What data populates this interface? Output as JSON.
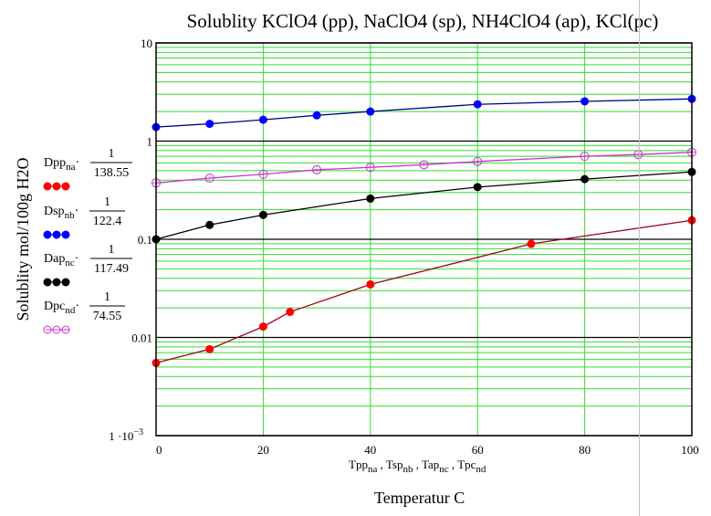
{
  "chart_data": {
    "type": "line",
    "title": "Solublity KClO4 (pp), NaClO4 (sp), NH4ClO4 (ap), KCl(pc)",
    "xlabel_vars": [
      {
        "base": "Tpp",
        "sub": "na"
      },
      {
        "base": "Tsp",
        "sub": "nb"
      },
      {
        "base": "Tap",
        "sub": "nc"
      },
      {
        "base": "Tpc",
        "sub": "nd"
      }
    ],
    "xlabel": "Temperatur C",
    "ylabel": "Solublity mol/100g H2O",
    "xlim": [
      0,
      100
    ],
    "ylim": [
      0.001,
      10
    ],
    "yscale": "log",
    "grid": true,
    "x_ticks": [
      "0",
      "20",
      "40",
      "60",
      "80",
      "100"
    ],
    "x_tick_values": [
      0,
      20,
      40,
      60,
      80,
      100
    ],
    "y_ticks": [
      {
        "value": 10,
        "label": "10"
      },
      {
        "value": 1,
        "label": "1"
      },
      {
        "value": 0.1,
        "label": "0.1"
      },
      {
        "value": 0.01,
        "label": "0.01"
      },
      {
        "value": 0.001,
        "label": "1 ·10",
        "exp": "−3"
      }
    ],
    "legend_placement": "left",
    "series": [
      {
        "name": "Dpp",
        "sub": "na",
        "divisor": "138.55",
        "numerator": "1",
        "color": "#ff0000",
        "line_color": "#a0001c",
        "marker": "filled-circle",
        "x": [
          0,
          10,
          20,
          25,
          40,
          70,
          100
        ],
        "values": [
          0.0055,
          0.0076,
          0.0129,
          0.0182,
          0.0347,
          0.0898,
          0.156
        ]
      },
      {
        "name": "Dsp",
        "sub": "nb",
        "divisor": "122.4",
        "numerator": "1",
        "color": "#0000ff",
        "line_color": "#000080",
        "marker": "filled-circle",
        "x": [
          0,
          10,
          20,
          30,
          40,
          60,
          80,
          100
        ],
        "values": [
          1.39,
          1.5,
          1.65,
          1.83,
          2.0,
          2.37,
          2.54,
          2.69
        ]
      },
      {
        "name": "Dap",
        "sub": "nc",
        "divisor": "117.49",
        "numerator": "1",
        "color": "#000000",
        "line_color": "#000000",
        "marker": "filled-circle",
        "x": [
          0,
          10,
          20,
          40,
          60,
          80,
          100
        ],
        "values": [
          0.1,
          0.14,
          0.177,
          0.26,
          0.34,
          0.41,
          0.485
        ]
      },
      {
        "name": "Dpc",
        "sub": "nd",
        "divisor": "74.55",
        "numerator": "1",
        "color": "#cc33cc",
        "line_color": "#cc33cc",
        "marker": "open-circle",
        "x": [
          0,
          10,
          20,
          30,
          40,
          50,
          60,
          80,
          90,
          100
        ],
        "values": [
          0.375,
          0.42,
          0.46,
          0.51,
          0.54,
          0.575,
          0.62,
          0.7,
          0.73,
          0.77
        ]
      }
    ]
  },
  "colors": {
    "grid": "#33dd33",
    "decade_line": "#000000",
    "page_break_line": "#c0c0c0"
  }
}
